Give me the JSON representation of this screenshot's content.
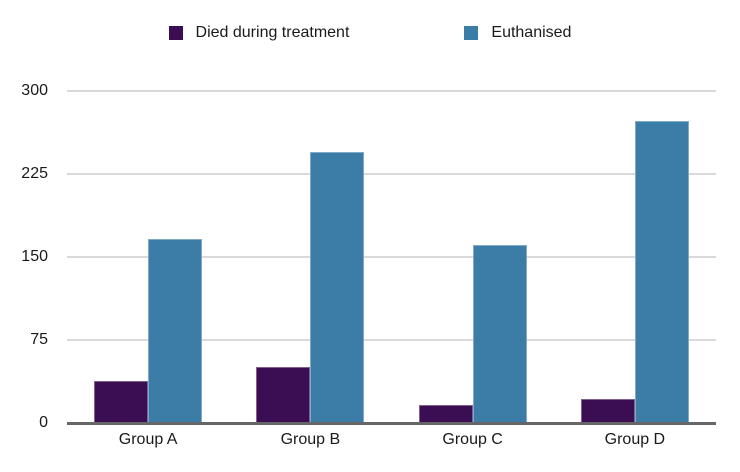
{
  "chart_data": {
    "type": "bar",
    "title": "",
    "xlabel": "",
    "ylabel": "",
    "categories": [
      "Group A",
      "Group B",
      "Group C",
      "Group D"
    ],
    "series": [
      {
        "name": "Died during treatment",
        "color": "#3B0D53",
        "values": [
          38,
          51,
          16,
          22
        ]
      },
      {
        "name": "Euthanised",
        "color": "#3C7DA7",
        "values": [
          166,
          245,
          161,
          273
        ]
      }
    ],
    "ylim": [
      0,
      300
    ],
    "yticks": [
      0,
      75,
      150,
      225,
      300
    ],
    "grid": true,
    "legend_position": "top-center"
  },
  "colors": {
    "gridline": "#d9d9d9",
    "axis_line": "#666666",
    "label_text": "#1a1a1a",
    "background": "#ffffff"
  }
}
